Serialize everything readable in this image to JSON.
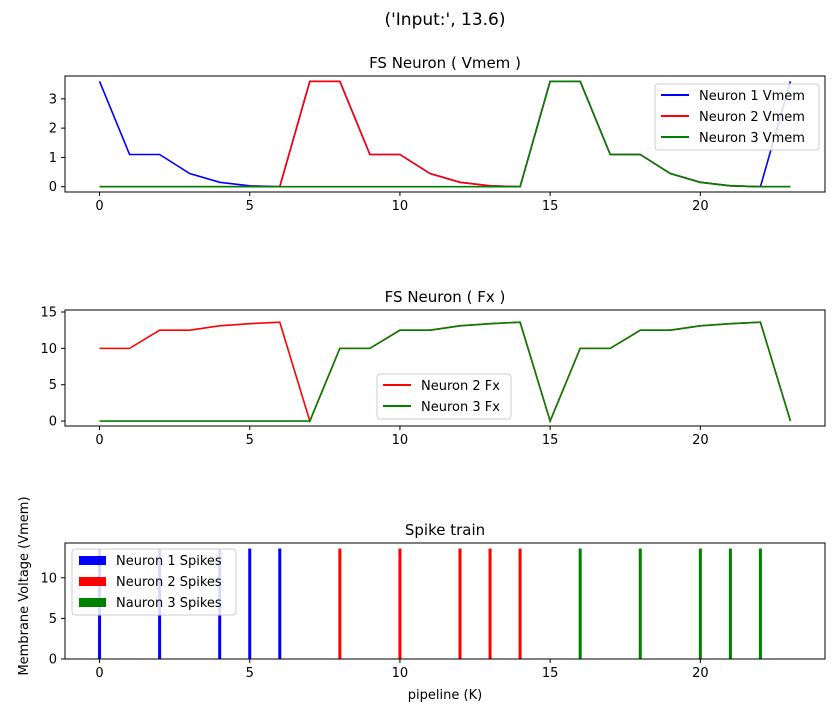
{
  "figure": {
    "suptitle": "('Input:', 13.6)"
  },
  "chart_data": [
    {
      "type": "line",
      "title": "FS Neuron ( Vmem )",
      "xlabel": "",
      "ylabel": "",
      "xlim": [
        -1.15,
        24.15
      ],
      "ylim": [
        -0.18,
        3.78
      ],
      "xticks": [
        0,
        5,
        10,
        15,
        20
      ],
      "yticks": [
        0,
        1,
        2,
        3
      ],
      "legend": "top-right",
      "x": [
        0,
        1,
        2,
        3,
        4,
        5,
        6,
        7,
        8,
        9,
        10,
        11,
        12,
        13,
        14,
        15,
        16,
        17,
        18,
        19,
        20,
        21,
        22,
        23
      ],
      "series": [
        {
          "name": "Neuron 1 Vmem",
          "color": "#0000ff",
          "values": [
            3.6,
            1.1,
            1.1,
            0.45,
            0.15,
            0.03,
            0,
            3.6,
            3.6,
            1.1,
            1.1,
            0.45,
            0.15,
            0.03,
            0,
            3.6,
            3.6,
            1.1,
            1.1,
            0.45,
            0.15,
            0.03,
            0,
            3.6
          ]
        },
        {
          "name": "Neuron 2 Vmem",
          "color": "#ff0000",
          "values": [
            0,
            0,
            0,
            0,
            0,
            0,
            0,
            3.6,
            3.6,
            1.1,
            1.1,
            0.45,
            0.15,
            0.03,
            0,
            3.6,
            3.6,
            1.1,
            1.1,
            0.45,
            0.15,
            0.03,
            0,
            0
          ]
        },
        {
          "name": "Neuron 3 Vmem",
          "color": "#008000",
          "values": [
            0,
            0,
            0,
            0,
            0,
            0,
            0,
            0,
            0,
            0,
            0,
            0,
            0,
            0,
            0,
            3.6,
            3.6,
            1.1,
            1.1,
            0.45,
            0.15,
            0.03,
            0,
            0
          ]
        }
      ]
    },
    {
      "type": "line",
      "title": "FS Neuron ( Fx )",
      "xlabel": "",
      "ylabel": "",
      "xlim": [
        -1.15,
        24.15
      ],
      "ylim": [
        -0.68,
        15.28
      ],
      "xticks": [
        0,
        5,
        10,
        15,
        20
      ],
      "yticks": [
        0,
        5,
        10,
        15
      ],
      "legend": "lower-center",
      "x": [
        0,
        1,
        2,
        3,
        4,
        5,
        6,
        7,
        8,
        9,
        10,
        11,
        12,
        13,
        14,
        15,
        16,
        17,
        18,
        19,
        20,
        21,
        22,
        23
      ],
      "series": [
        {
          "name": "Neuron 2 Fx",
          "color": "#ff0000",
          "values": [
            10,
            10,
            12.5,
            12.5,
            13.1,
            13.4,
            13.6,
            0,
            10,
            10,
            12.5,
            12.5,
            13.1,
            13.4,
            13.6,
            0,
            10,
            10,
            12.5,
            12.5,
            13.1,
            13.4,
            13.6,
            0
          ]
        },
        {
          "name": "Neuron 3 Fx",
          "color": "#008000",
          "values": [
            0,
            0,
            0,
            0,
            0,
            0,
            0,
            0,
            10,
            10,
            12.5,
            12.5,
            13.1,
            13.4,
            13.6,
            0,
            10,
            10,
            12.5,
            12.5,
            13.1,
            13.4,
            13.6,
            0
          ]
        }
      ]
    },
    {
      "type": "bar",
      "title": "Spike train",
      "xlabel": "pipeline (K)",
      "ylabel": "Membrane Voltage (Vmem)",
      "xlim": [
        -1.15,
        24.15
      ],
      "ylim": [
        0,
        14.28
      ],
      "xticks": [
        0,
        5,
        10,
        15,
        20
      ],
      "yticks": [
        0,
        5,
        10
      ],
      "legend": "top-left",
      "bar_height": 13.6,
      "series": [
        {
          "name": "Neuron 1 Spikes",
          "color": "#0000ff",
          "x": [
            0,
            2,
            4,
            5,
            6
          ]
        },
        {
          "name": "Neuron 2 Spikes",
          "color": "#ff0000",
          "x": [
            8,
            10,
            12,
            13,
            14
          ]
        },
        {
          "name": "Nauron 3 Spikes",
          "color": "#008000",
          "x": [
            16,
            18,
            20,
            21,
            22
          ]
        }
      ]
    }
  ]
}
